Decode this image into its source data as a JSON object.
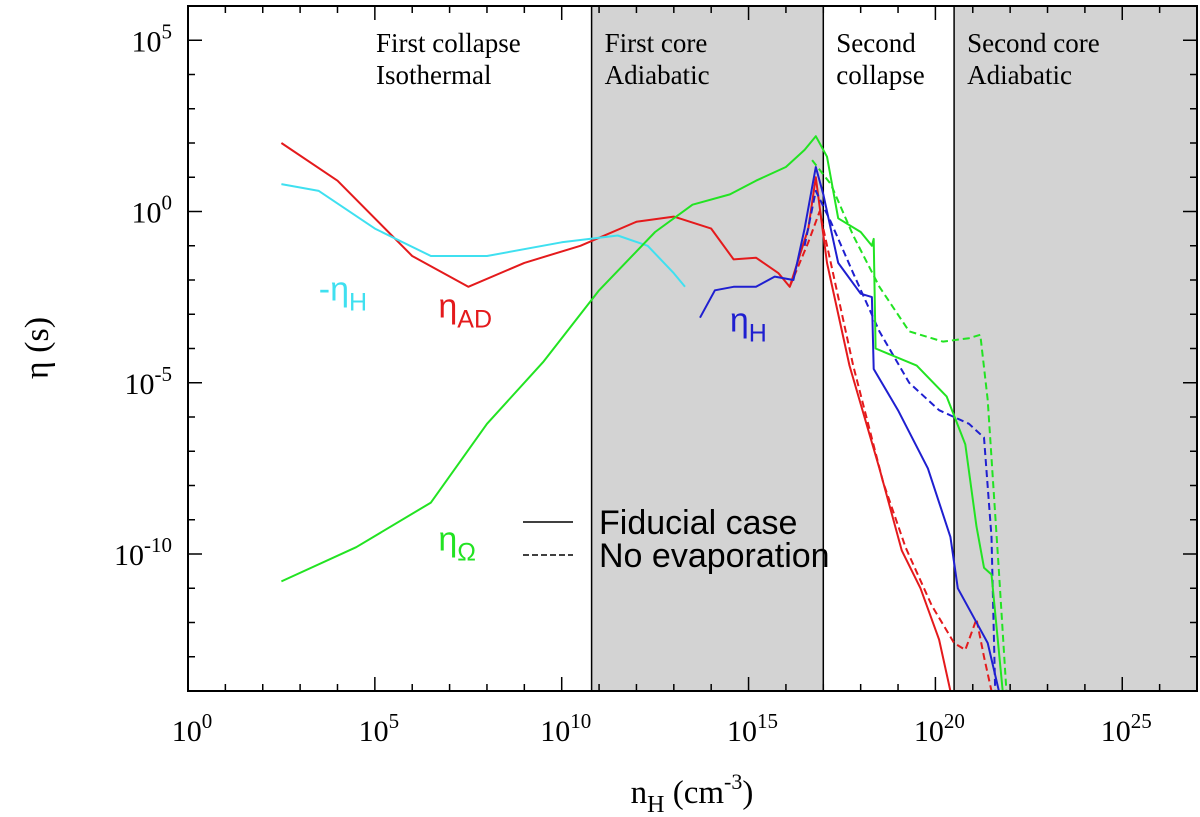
{
  "chart_data": {
    "type": "line",
    "xlabel": {
      "main": "n",
      "sub": "H",
      "unit_open": " (cm",
      "unit_sup": "-3",
      "unit_close": ")"
    },
    "ylabel": {
      "main": "η",
      "unit": " (s)"
    },
    "xscale": "log",
    "yscale": "log",
    "xlim_log10": [
      0,
      27
    ],
    "ylim_log10": [
      -14,
      6
    ],
    "x_ticks": [
      {
        "base": "10",
        "exp": "0",
        "log": 0
      },
      {
        "base": "10",
        "exp": "5",
        "log": 5
      },
      {
        "base": "10",
        "exp": "10",
        "log": 10
      },
      {
        "base": "10",
        "exp": "15",
        "log": 15
      },
      {
        "base": "10",
        "exp": "20",
        "log": 20
      },
      {
        "base": "10",
        "exp": "25",
        "log": 25
      }
    ],
    "y_ticks": [
      {
        "base": "10",
        "exp": "5",
        "log": 5
      },
      {
        "base": "10",
        "exp": "0",
        "log": 0
      },
      {
        "base": "10",
        "exp": "-5",
        "log": -5
      },
      {
        "base": "10",
        "exp": "-10",
        "log": -10
      }
    ],
    "regions": [
      {
        "name": "First collapse",
        "line2": "Isothermal",
        "from_log": 0,
        "to_log": 10.8,
        "shaded": false
      },
      {
        "name": "First core",
        "line2": "Adiabatic",
        "from_log": 10.8,
        "to_log": 17.0,
        "shaded": true
      },
      {
        "name": "Second",
        "line2": "collapse",
        "from_log": 17.0,
        "to_log": 20.5,
        "shaded": false
      },
      {
        "name": "Second core",
        "line2": "Adiabatic",
        "from_log": 20.5,
        "to_log": 27,
        "shaded": true
      }
    ],
    "colors": {
      "ad": "#e41a1c",
      "hall": "#1f1fd0",
      "hall_neg": "#3fe0f0",
      "ohm": "#22e322",
      "shade": "#d3d3d3",
      "axis": "#000000"
    },
    "series": [
      {
        "name": "eta_AD fiducial",
        "color_key": "ad",
        "style": "solid",
        "points": [
          [
            2.5,
            2.0
          ],
          [
            4,
            0.9
          ],
          [
            6,
            -1.3
          ],
          [
            7.5,
            -2.2
          ],
          [
            9,
            -1.5
          ],
          [
            10.5,
            -1.0
          ],
          [
            12,
            -0.3
          ],
          [
            13,
            -0.15
          ],
          [
            14,
            -0.5
          ],
          [
            14.6,
            -1.4
          ],
          [
            15.2,
            -1.35
          ],
          [
            15.8,
            -1.8
          ],
          [
            16.1,
            -2.2
          ],
          [
            16.6,
            -0.5
          ],
          [
            16.8,
            1.0
          ],
          [
            17.1,
            -1.5
          ],
          [
            17.7,
            -4.5
          ],
          [
            18.5,
            -7.5
          ],
          [
            19.1,
            -9.9
          ],
          [
            19.6,
            -11.0
          ],
          [
            20.1,
            -12.5
          ],
          [
            20.4,
            -14.0
          ]
        ]
      },
      {
        "name": "eta_AD no evaporation",
        "color_key": "ad",
        "style": "dashed",
        "points": [
          [
            16.1,
            -2.2
          ],
          [
            16.6,
            -0.9
          ],
          [
            16.9,
            0.0
          ],
          [
            17.2,
            -1.5
          ],
          [
            17.8,
            -4.5
          ],
          [
            18.6,
            -7.9
          ],
          [
            19.2,
            -9.8
          ],
          [
            19.9,
            -11.5
          ],
          [
            20.5,
            -12.6
          ],
          [
            20.8,
            -12.8
          ],
          [
            21.1,
            -11.9
          ],
          [
            21.3,
            -13.0
          ],
          [
            21.5,
            -14.0
          ]
        ]
      },
      {
        "name": "eta_H fiducial",
        "color_key": "hall",
        "style": "solid",
        "points": [
          [
            13.7,
            -3.1
          ],
          [
            14.1,
            -2.3
          ],
          [
            14.6,
            -2.2
          ],
          [
            15.2,
            -2.2
          ],
          [
            15.7,
            -1.9
          ],
          [
            16.2,
            -2.0
          ],
          [
            16.5,
            -0.5
          ],
          [
            16.8,
            1.3
          ],
          [
            17.0,
            0.5
          ],
          [
            17.4,
            -1.5
          ],
          [
            18.0,
            -2.4
          ],
          [
            18.3,
            -2.5
          ],
          [
            18.35,
            -4.6
          ],
          [
            19.0,
            -5.8
          ],
          [
            19.8,
            -7.5
          ],
          [
            20.4,
            -9.5
          ],
          [
            20.6,
            -11.0
          ],
          [
            21.0,
            -11.8
          ],
          [
            21.4,
            -12.6
          ],
          [
            21.7,
            -14.0
          ]
        ]
      },
      {
        "name": "eta_H no evaporation",
        "color_key": "hall",
        "style": "dashed",
        "points": [
          [
            16.5,
            -1.0
          ],
          [
            16.8,
            0.6
          ],
          [
            17.2,
            -0.3
          ],
          [
            17.8,
            -1.8
          ],
          [
            18.5,
            -3.5
          ],
          [
            19.3,
            -5.0
          ],
          [
            20.1,
            -5.8
          ],
          [
            20.9,
            -6.2
          ],
          [
            21.3,
            -6.6
          ],
          [
            21.5,
            -9.5
          ],
          [
            21.6,
            -14.0
          ]
        ]
      },
      {
        "name": "-eta_H",
        "color_key": "hall_neg",
        "style": "solid",
        "points": [
          [
            2.5,
            0.8
          ],
          [
            3.5,
            0.6
          ],
          [
            5,
            -0.5
          ],
          [
            6.5,
            -1.3
          ],
          [
            8,
            -1.3
          ],
          [
            10,
            -0.9
          ],
          [
            11.5,
            -0.7
          ],
          [
            12.3,
            -1.0
          ],
          [
            13.0,
            -1.8
          ],
          [
            13.3,
            -2.2
          ]
        ]
      },
      {
        "name": "eta_Ohm fiducial",
        "color_key": "ohm",
        "style": "solid",
        "points": [
          [
            2.5,
            -10.8
          ],
          [
            4.5,
            -9.8
          ],
          [
            6.5,
            -8.5
          ],
          [
            8,
            -6.2
          ],
          [
            9.5,
            -4.4
          ],
          [
            11,
            -2.3
          ],
          [
            12.5,
            -0.6
          ],
          [
            13.5,
            0.2
          ],
          [
            14.5,
            0.5
          ],
          [
            15.2,
            0.9
          ],
          [
            16,
            1.3
          ],
          [
            16.5,
            1.8
          ],
          [
            16.8,
            2.2
          ],
          [
            17.1,
            1.6
          ],
          [
            17.4,
            -0.2
          ],
          [
            18.0,
            -0.6
          ],
          [
            18.3,
            -1.0
          ],
          [
            18.35,
            -0.8
          ],
          [
            18.4,
            -4.0
          ],
          [
            19.5,
            -4.5
          ],
          [
            20.3,
            -5.4
          ],
          [
            20.8,
            -6.8
          ],
          [
            21.1,
            -9.2
          ],
          [
            21.3,
            -10.4
          ],
          [
            21.5,
            -10.6
          ],
          [
            21.8,
            -14.0
          ]
        ]
      },
      {
        "name": "eta_Ohm no evaporation",
        "color_key": "ohm",
        "style": "dashed",
        "points": [
          [
            16.7,
            1.5
          ],
          [
            17.2,
            0.8
          ],
          [
            17.8,
            -0.7
          ],
          [
            18.5,
            -2.2
          ],
          [
            19.3,
            -3.5
          ],
          [
            20.2,
            -3.8
          ],
          [
            20.9,
            -3.7
          ],
          [
            21.2,
            -3.6
          ],
          [
            21.4,
            -5.5
          ],
          [
            21.7,
            -10.5
          ],
          [
            21.9,
            -14.0
          ]
        ]
      }
    ],
    "curve_labels": [
      {
        "sym": "-η",
        "sub": "H",
        "color_key": "hall_neg",
        "x_log": 3.5,
        "y_log": -2.6
      },
      {
        "sym": "η",
        "sub": "AD",
        "color_key": "ad",
        "x_log": 6.7,
        "y_log": -3.1
      },
      {
        "sym": "η",
        "sub": "H",
        "color_key": "hall",
        "x_log": 14.5,
        "y_log": -3.5
      },
      {
        "sym": "η",
        "sub": "Ω",
        "color_key": "ohm",
        "x_log": 6.7,
        "y_log": -9.9
      }
    ],
    "legend": [
      {
        "label": "Fiducial case",
        "style": "solid"
      },
      {
        "label": "No evaporation",
        "style": "dashed"
      }
    ],
    "legend_position": "center-bottom"
  }
}
